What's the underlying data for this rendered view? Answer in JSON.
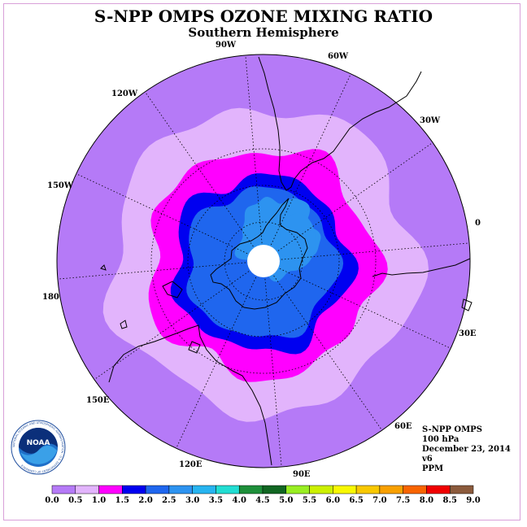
{
  "title": "S-NPP OMPS OZONE MIXING RATIO",
  "subtitle": "Southern Hemisphere",
  "info": {
    "instrument": "S-NPP OMPS",
    "level": "100 hPa",
    "date": "December 23, 2014",
    "version": "v6",
    "units": "PPM"
  },
  "longitude_labels": [
    "90W",
    "60W",
    "30W",
    "0",
    "30E",
    "60E",
    "90E",
    "120E",
    "150E",
    "180",
    "150W",
    "120W"
  ],
  "logo": {
    "text": "NOAA",
    "ring_text": "NATIONAL OCEANIC AND ATMOSPHERIC ADMINISTRATION · U.S. DEPARTMENT OF COMMERCE"
  },
  "legend": {
    "labels": [
      "0.0",
      "0.5",
      "1.0",
      "1.5",
      "2.0",
      "2.5",
      "3.0",
      "3.5",
      "4.0",
      "4.5",
      "5.0",
      "5.5",
      "6.0",
      "6.5",
      "7.0",
      "7.5",
      "8.0",
      "8.5",
      "9.0"
    ],
    "colors": [
      "#b57af7",
      "#e2b4fc",
      "#ff00ff",
      "#0000f0",
      "#1f66ee",
      "#2d93f0",
      "#27b4f0",
      "#22ddd2",
      "#1e8f3a",
      "#116622",
      "#99ee22",
      "#ccf000",
      "#f8f800",
      "#f8c800",
      "#f8a000",
      "#f86400",
      "#f00000",
      "#8b5a3c"
    ]
  },
  "contours": [
    {
      "level": "0.0",
      "color": "#b57af7"
    },
    {
      "level": "0.5",
      "color": "#e2b4fc"
    },
    {
      "level": "1.0",
      "color": "#ff00ff"
    },
    {
      "level": "1.5",
      "color": "#0000f0"
    },
    {
      "level": "2.0",
      "color": "#1f66ee"
    },
    {
      "level": "2.5",
      "color": "#2d93f0"
    }
  ]
}
